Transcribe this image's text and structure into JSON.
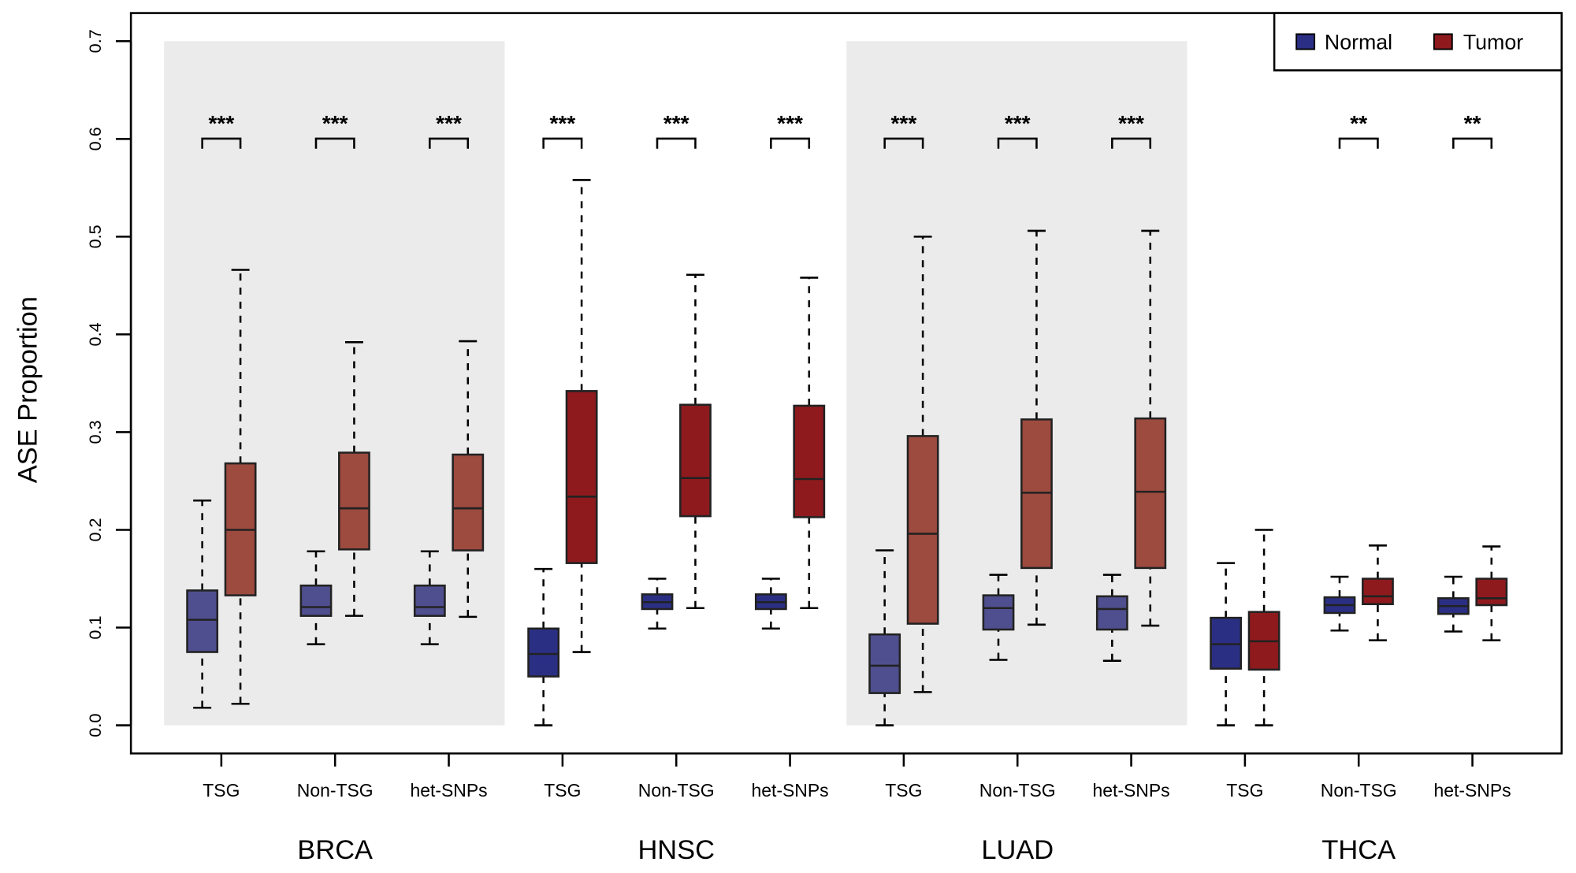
{
  "chart_data": {
    "type": "boxplot",
    "ylabel": "ASE Proportion",
    "ylim": [
      0,
      0.7
    ],
    "yticks": [
      "0.0",
      "0.1",
      "0.2",
      "0.3",
      "0.4",
      "0.5",
      "0.6",
      "0.7"
    ],
    "legend": {
      "position": "top-right",
      "entries": [
        {
          "name": "Normal",
          "color": "#2b2f84"
        },
        {
          "name": "Tumor",
          "color": "#8e1a1e"
        }
      ]
    },
    "shaded_groups": [
      "BRCA",
      "LUAD"
    ],
    "shaded_colors": {
      "Normal": "#4f4f8f",
      "Tumor": "#9d4a3f",
      "background": "#ebebeb"
    },
    "groups": [
      {
        "name": "BRCA",
        "categories": [
          {
            "label": "TSG",
            "sig": "***",
            "normal": [
              0.018,
              0.075,
              0.108,
              0.138,
              0.23
            ],
            "tumor": [
              0.022,
              0.133,
              0.2,
              0.268,
              0.466
            ]
          },
          {
            "label": "Non-TSG",
            "sig": "***",
            "normal": [
              0.083,
              0.112,
              0.121,
              0.143,
              0.178
            ],
            "tumor": [
              0.112,
              0.18,
              0.222,
              0.279,
              0.392
            ]
          },
          {
            "label": "het-SNPs",
            "sig": "***",
            "normal": [
              0.083,
              0.112,
              0.121,
              0.143,
              0.178
            ],
            "tumor": [
              0.111,
              0.179,
              0.222,
              0.277,
              0.393
            ]
          }
        ]
      },
      {
        "name": "HNSC",
        "categories": [
          {
            "label": "TSG",
            "sig": "***",
            "normal": [
              0.0,
              0.05,
              0.073,
              0.099,
              0.16
            ],
            "tumor": [
              0.075,
              0.166,
              0.234,
              0.342,
              0.558
            ]
          },
          {
            "label": "Non-TSG",
            "sig": "***",
            "normal": [
              0.099,
              0.119,
              0.126,
              0.134,
              0.15
            ],
            "tumor": [
              0.12,
              0.214,
              0.253,
              0.328,
              0.461
            ]
          },
          {
            "label": "het-SNPs",
            "sig": "***",
            "normal": [
              0.099,
              0.119,
              0.126,
              0.134,
              0.15
            ],
            "tumor": [
              0.12,
              0.213,
              0.252,
              0.327,
              0.458
            ]
          }
        ]
      },
      {
        "name": "LUAD",
        "categories": [
          {
            "label": "TSG",
            "sig": "***",
            "normal": [
              0.0,
              0.033,
              0.061,
              0.093,
              0.179
            ],
            "tumor": [
              0.034,
              0.104,
              0.196,
              0.296,
              0.5
            ]
          },
          {
            "label": "Non-TSG",
            "sig": "***",
            "normal": [
              0.067,
              0.098,
              0.12,
              0.133,
              0.154
            ],
            "tumor": [
              0.103,
              0.161,
              0.238,
              0.313,
              0.506
            ]
          },
          {
            "label": "het-SNPs",
            "sig": "***",
            "normal": [
              0.066,
              0.098,
              0.119,
              0.132,
              0.154
            ],
            "tumor": [
              0.102,
              0.161,
              0.239,
              0.314,
              0.506
            ]
          }
        ]
      },
      {
        "name": "THCA",
        "categories": [
          {
            "label": "TSG",
            "sig": "",
            "normal": [
              0.0,
              0.058,
              0.083,
              0.11,
              0.166
            ],
            "tumor": [
              0.0,
              0.057,
              0.086,
              0.116,
              0.2
            ]
          },
          {
            "label": "Non-TSG",
            "sig": "**",
            "normal": [
              0.097,
              0.115,
              0.123,
              0.131,
              0.152
            ],
            "tumor": [
              0.087,
              0.124,
              0.132,
              0.15,
              0.184
            ]
          },
          {
            "label": "het-SNPs",
            "sig": "**",
            "normal": [
              0.096,
              0.114,
              0.122,
              0.13,
              0.152
            ],
            "tumor": [
              0.087,
              0.123,
              0.13,
              0.15,
              0.183
            ]
          }
        ]
      }
    ]
  }
}
